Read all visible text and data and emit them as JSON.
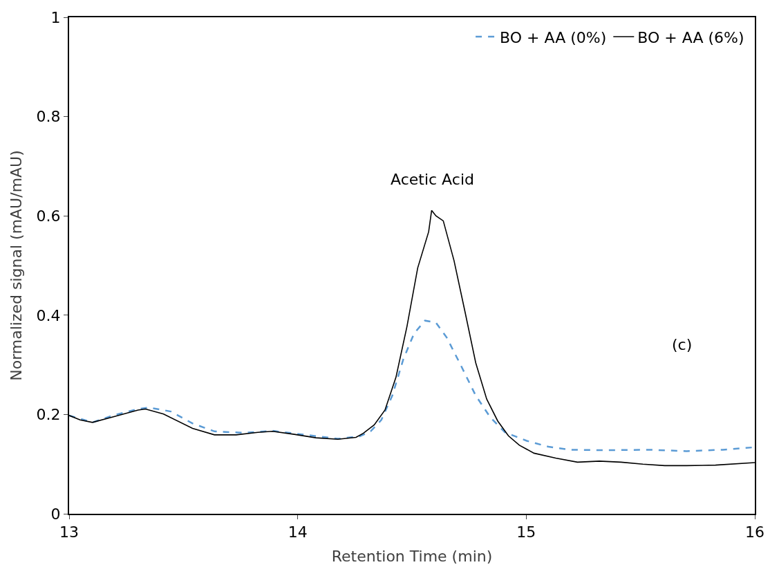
{
  "chart_data": {
    "type": "line",
    "xlabel": "Retention Time (min)",
    "ylabel": "Normalized signal (mAU/mAU)",
    "xlim": [
      13,
      16
    ],
    "xticks": [
      13,
      14,
      15,
      16
    ],
    "ylim": [
      0,
      1
    ],
    "yticks": [
      0,
      0.2,
      0.4,
      0.6,
      0.8,
      1
    ],
    "legend": "top right",
    "marker": "none",
    "annotations": [
      {
        "text": "Acetic Acid",
        "x": 14.59,
        "y": 0.611
      },
      "(c)"
    ],
    "series": [
      {
        "name": "BO + AA (0%)",
        "color": "#5b9bd5",
        "line_style": "dashed",
        "x": [
          13.0,
          13.102,
          13.191,
          13.302,
          13.35,
          13.445,
          13.54,
          13.636,
          13.763,
          13.89,
          14.017,
          14.176,
          14.271,
          14.319,
          14.366,
          14.414,
          14.462,
          14.509,
          14.557,
          14.605,
          14.652,
          14.716,
          14.779,
          14.843,
          14.907,
          15.002,
          15.097,
          15.193,
          15.351,
          15.542,
          15.701,
          15.86,
          16.0
        ],
        "values": [
          0.198,
          0.184,
          0.198,
          0.211,
          0.214,
          0.206,
          0.182,
          0.166,
          0.163,
          0.167,
          0.16,
          0.151,
          0.156,
          0.166,
          0.189,
          0.238,
          0.311,
          0.363,
          0.389,
          0.385,
          0.355,
          0.297,
          0.238,
          0.194,
          0.164,
          0.147,
          0.135,
          0.129,
          0.128,
          0.129,
          0.126,
          0.129,
          0.134
        ]
      },
      {
        "name": "BO + AA (6%)",
        "color": "#000000",
        "line_style": "solid",
        "x": [
          13.0,
          13.048,
          13.102,
          13.191,
          13.302,
          13.334,
          13.413,
          13.54,
          13.636,
          13.731,
          13.826,
          13.89,
          13.985,
          14.08,
          14.176,
          14.255,
          14.287,
          14.335,
          14.382,
          14.43,
          14.478,
          14.525,
          14.573,
          14.586,
          14.605,
          14.637,
          14.684,
          14.732,
          14.779,
          14.827,
          14.875,
          14.922,
          14.97,
          15.034,
          15.129,
          15.224,
          15.32,
          15.415,
          15.51,
          15.606,
          15.701,
          15.828,
          16.0
        ],
        "values": [
          0.198,
          0.189,
          0.184,
          0.195,
          0.209,
          0.211,
          0.201,
          0.172,
          0.159,
          0.159,
          0.164,
          0.166,
          0.16,
          0.153,
          0.15,
          0.154,
          0.162,
          0.179,
          0.209,
          0.275,
          0.377,
          0.495,
          0.568,
          0.611,
          0.6,
          0.59,
          0.51,
          0.407,
          0.304,
          0.231,
          0.187,
          0.157,
          0.138,
          0.122,
          0.112,
          0.104,
          0.106,
          0.104,
          0.1,
          0.097,
          0.097,
          0.098,
          0.103
        ]
      }
    ]
  }
}
